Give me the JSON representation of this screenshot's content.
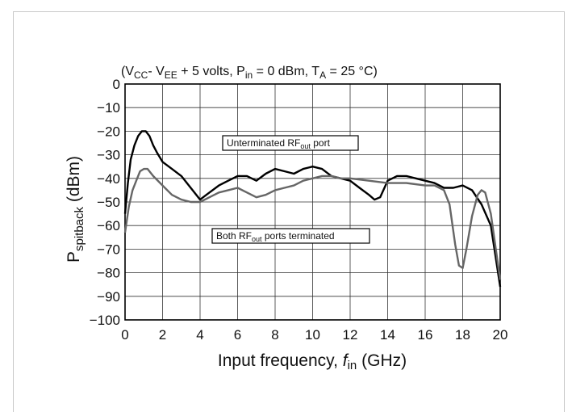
{
  "chart_data": {
    "type": "line",
    "title": {
      "open": "(V",
      "vcc_sub": "CC",
      "dash": "- V",
      "vee_sub": "EE",
      "mid": " + 5 volts, P",
      "pin_sub": "in",
      "mid2": " = 0 dBm, T",
      "ta_sub": "A",
      "end": " = 25 °C)"
    },
    "xlabel": {
      "main": "Input frequency, ",
      "italic": "f",
      "sub": "in",
      "unit": " (GHz)"
    },
    "ylabel": {
      "main": "P",
      "sub": "spitback",
      "unit": " (dBm)"
    },
    "xlim": [
      0,
      20
    ],
    "ylim": [
      -100,
      0
    ],
    "x_ticks": [
      "0",
      "2",
      "4",
      "6",
      "8",
      "10",
      "12",
      "14",
      "16",
      "18",
      "20"
    ],
    "y_ticks": [
      "0",
      "−10",
      "−20",
      "−30",
      "−40",
      "−50",
      "−60",
      "−70",
      "−80",
      "−90",
      "−100"
    ],
    "grid": true,
    "annotations": [
      {
        "pre": "Unterminated RF",
        "sub": "out",
        "post": "  port"
      },
      {
        "pre": "Both RF",
        "sub": "out",
        "post": "  ports terminated"
      }
    ],
    "series": [
      {
        "color": "#000000",
        "points": [
          [
            0,
            -55
          ],
          [
            0.15,
            -42
          ],
          [
            0.3,
            -32
          ],
          [
            0.5,
            -26
          ],
          [
            0.7,
            -22
          ],
          [
            0.9,
            -20
          ],
          [
            1.1,
            -20
          ],
          [
            1.3,
            -22
          ],
          [
            1.5,
            -26
          ],
          [
            1.7,
            -29
          ],
          [
            2,
            -33
          ],
          [
            2.5,
            -36
          ],
          [
            3,
            -39
          ],
          [
            3.5,
            -44
          ],
          [
            4,
            -49
          ],
          [
            4.5,
            -46
          ],
          [
            5,
            -43
          ],
          [
            5.5,
            -41
          ],
          [
            6,
            -39
          ],
          [
            6.5,
            -39
          ],
          [
            7,
            -41
          ],
          [
            7.5,
            -38
          ],
          [
            8,
            -36
          ],
          [
            8.5,
            -37
          ],
          [
            9,
            -38
          ],
          [
            9.5,
            -36
          ],
          [
            10,
            -35
          ],
          [
            10.5,
            -36
          ],
          [
            11,
            -39
          ],
          [
            11.5,
            -40
          ],
          [
            12,
            -41
          ],
          [
            12.5,
            -44
          ],
          [
            13,
            -47
          ],
          [
            13.3,
            -49
          ],
          [
            13.6,
            -48
          ],
          [
            14,
            -41
          ],
          [
            14.5,
            -39
          ],
          [
            15,
            -39
          ],
          [
            15.5,
            -40
          ],
          [
            16,
            -41
          ],
          [
            16.5,
            -42
          ],
          [
            17,
            -44
          ],
          [
            17.5,
            -44
          ],
          [
            18,
            -43
          ],
          [
            18.5,
            -45
          ],
          [
            19,
            -51
          ],
          [
            19.5,
            -60
          ],
          [
            20,
            -86
          ]
        ]
      },
      {
        "color": "#666666",
        "points": [
          [
            0,
            -63
          ],
          [
            0.2,
            -52
          ],
          [
            0.4,
            -45
          ],
          [
            0.6,
            -41
          ],
          [
            0.8,
            -37
          ],
          [
            1,
            -36
          ],
          [
            1.2,
            -36
          ],
          [
            1.5,
            -39
          ],
          [
            2,
            -43
          ],
          [
            2.5,
            -47
          ],
          [
            3,
            -49
          ],
          [
            3.5,
            -50
          ],
          [
            4,
            -50
          ],
          [
            4.5,
            -48
          ],
          [
            5,
            -46
          ],
          [
            5.5,
            -45
          ],
          [
            6,
            -44
          ],
          [
            6.5,
            -46
          ],
          [
            7,
            -48
          ],
          [
            7.5,
            -47
          ],
          [
            8,
            -45
          ],
          [
            8.5,
            -44
          ],
          [
            9,
            -43
          ],
          [
            9.5,
            -41
          ],
          [
            10,
            -40
          ],
          [
            10.5,
            -39
          ],
          [
            11,
            -39
          ],
          [
            11.5,
            -40
          ],
          [
            12,
            -40
          ],
          [
            13,
            -41
          ],
          [
            14,
            -42
          ],
          [
            15,
            -42
          ],
          [
            16,
            -43
          ],
          [
            16.5,
            -43
          ],
          [
            17,
            -45
          ],
          [
            17.3,
            -51
          ],
          [
            17.6,
            -68
          ],
          [
            17.8,
            -77
          ],
          [
            18,
            -78
          ],
          [
            18.2,
            -70
          ],
          [
            18.5,
            -56
          ],
          [
            18.8,
            -47
          ],
          [
            19,
            -45
          ],
          [
            19.2,
            -46
          ],
          [
            19.5,
            -55
          ],
          [
            19.8,
            -72
          ],
          [
            20,
            -83
          ]
        ]
      }
    ]
  }
}
